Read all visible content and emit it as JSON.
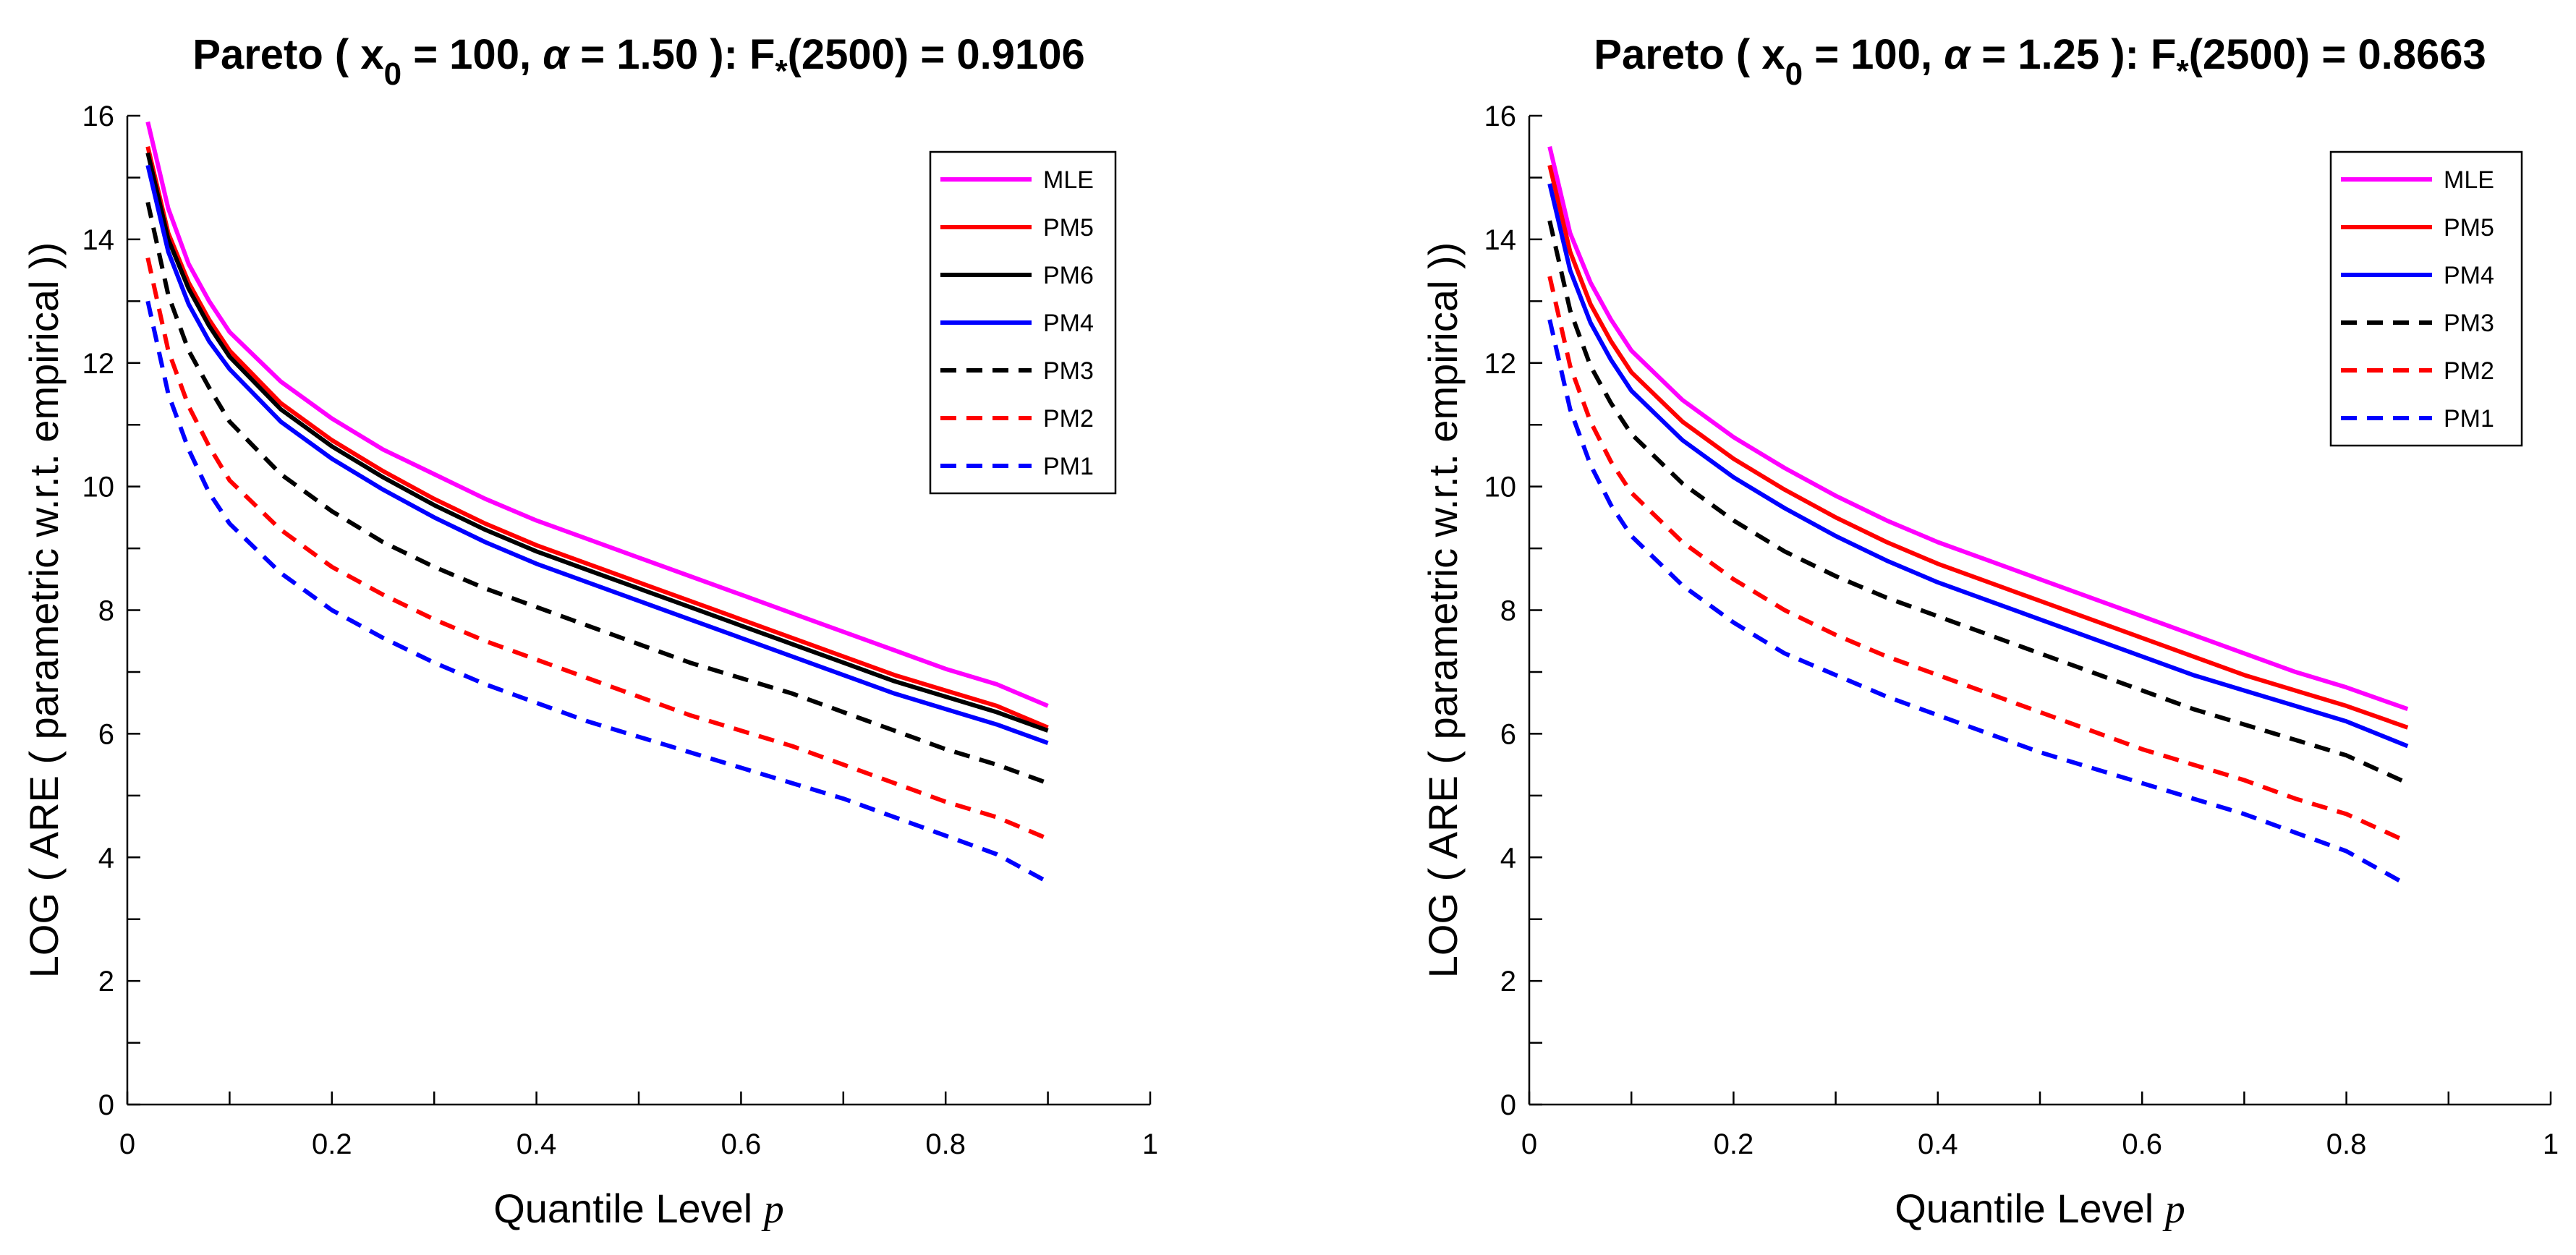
{
  "chart_data": [
    {
      "type": "line",
      "title": {
        "prefix": "Pareto ( x",
        "sub": "0",
        "mid1": " = 100, ",
        "alpha": "α",
        "mid2": " = 1.50 ):  F",
        "star": "*",
        "suffix": "(2500) = 0.9106"
      },
      "xlabel": "Quantile Level",
      "xlabel_var": "p",
      "ylabel": "LOG ( ARE ( parametric w.r.t. empirical ))",
      "xlim": [
        0,
        1
      ],
      "ylim": [
        0,
        16
      ],
      "xticks": [
        0,
        0.1,
        0.2,
        0.3,
        0.4,
        0.5,
        0.6,
        0.7,
        0.8,
        0.9,
        1
      ],
      "xtick_labels": [
        "0",
        "",
        "0.2",
        "",
        "0.4",
        "",
        "0.6",
        "",
        "0.8",
        "",
        "1"
      ],
      "yticks": [
        0,
        1,
        2,
        3,
        4,
        5,
        6,
        7,
        8,
        9,
        10,
        11,
        12,
        13,
        14,
        15,
        16
      ],
      "ytick_labels": [
        "0",
        "",
        "2",
        "",
        "4",
        "",
        "6",
        "",
        "8",
        "",
        "10",
        "",
        "12",
        "",
        "14",
        "",
        "16"
      ],
      "grid": false,
      "legend_position": "top-right",
      "series": [
        {
          "name": "MLE",
          "color": "#ff00ff",
          "dash": false,
          "x": [
            0.02,
            0.04,
            0.06,
            0.08,
            0.1,
            0.15,
            0.2,
            0.25,
            0.3,
            0.35,
            0.4,
            0.45,
            0.5,
            0.55,
            0.6,
            0.65,
            0.7,
            0.75,
            0.8,
            0.85,
            0.9
          ],
          "y": [
            15.9,
            14.5,
            13.6,
            13.0,
            12.5,
            11.7,
            11.1,
            10.6,
            10.2,
            9.8,
            9.45,
            9.15,
            8.85,
            8.55,
            8.25,
            7.95,
            7.65,
            7.35,
            7.05,
            6.8,
            6.45
          ]
        },
        {
          "name": "PM5",
          "color": "#ff0000",
          "dash": false,
          "x": [
            0.02,
            0.04,
            0.06,
            0.08,
            0.1,
            0.15,
            0.2,
            0.25,
            0.3,
            0.35,
            0.4,
            0.45,
            0.5,
            0.55,
            0.6,
            0.65,
            0.7,
            0.75,
            0.8,
            0.85,
            0.9
          ],
          "y": [
            15.5,
            14.1,
            13.3,
            12.7,
            12.2,
            11.35,
            10.75,
            10.25,
            9.8,
            9.4,
            9.05,
            8.75,
            8.45,
            8.15,
            7.85,
            7.55,
            7.25,
            6.95,
            6.7,
            6.45,
            6.1
          ]
        },
        {
          "name": "PM6",
          "color": "#000000",
          "dash": false,
          "x": [
            0.02,
            0.04,
            0.06,
            0.08,
            0.1,
            0.15,
            0.2,
            0.25,
            0.3,
            0.35,
            0.4,
            0.45,
            0.5,
            0.55,
            0.6,
            0.65,
            0.7,
            0.75,
            0.8,
            0.85,
            0.9
          ],
          "y": [
            15.4,
            14.0,
            13.2,
            12.6,
            12.1,
            11.25,
            10.65,
            10.15,
            9.7,
            9.3,
            8.95,
            8.65,
            8.35,
            8.05,
            7.75,
            7.45,
            7.15,
            6.85,
            6.6,
            6.35,
            6.05
          ]
        },
        {
          "name": "PM4",
          "color": "#0000ff",
          "dash": false,
          "x": [
            0.02,
            0.04,
            0.06,
            0.08,
            0.1,
            0.15,
            0.2,
            0.25,
            0.3,
            0.35,
            0.4,
            0.45,
            0.5,
            0.55,
            0.6,
            0.65,
            0.7,
            0.75,
            0.8,
            0.85,
            0.9
          ],
          "y": [
            15.2,
            13.8,
            12.95,
            12.35,
            11.9,
            11.05,
            10.45,
            9.95,
            9.5,
            9.1,
            8.75,
            8.45,
            8.15,
            7.85,
            7.55,
            7.25,
            6.95,
            6.65,
            6.4,
            6.15,
            5.85
          ]
        },
        {
          "name": "PM3",
          "color": "#000000",
          "dash": true,
          "x": [
            0.02,
            0.04,
            0.06,
            0.08,
            0.1,
            0.15,
            0.2,
            0.25,
            0.3,
            0.35,
            0.4,
            0.45,
            0.5,
            0.55,
            0.6,
            0.65,
            0.7,
            0.75,
            0.8,
            0.85,
            0.9
          ],
          "y": [
            14.6,
            13.1,
            12.2,
            11.6,
            11.05,
            10.2,
            9.6,
            9.1,
            8.7,
            8.35,
            8.05,
            7.75,
            7.45,
            7.15,
            6.9,
            6.65,
            6.35,
            6.05,
            5.75,
            5.5,
            5.2
          ]
        },
        {
          "name": "PM2",
          "color": "#ff0000",
          "dash": true,
          "x": [
            0.02,
            0.04,
            0.06,
            0.08,
            0.1,
            0.15,
            0.2,
            0.25,
            0.3,
            0.35,
            0.4,
            0.45,
            0.5,
            0.55,
            0.6,
            0.65,
            0.7,
            0.75,
            0.8,
            0.85,
            0.9
          ],
          "y": [
            13.7,
            12.2,
            11.3,
            10.65,
            10.1,
            9.3,
            8.7,
            8.25,
            7.85,
            7.5,
            7.2,
            6.9,
            6.6,
            6.3,
            6.05,
            5.8,
            5.5,
            5.2,
            4.9,
            4.65,
            4.3
          ]
        },
        {
          "name": "PM1",
          "color": "#0000ff",
          "dash": true,
          "x": [
            0.02,
            0.04,
            0.06,
            0.08,
            0.1,
            0.15,
            0.2,
            0.25,
            0.3,
            0.35,
            0.4,
            0.45,
            0.5,
            0.55,
            0.6,
            0.65,
            0.7,
            0.75,
            0.8,
            0.85,
            0.9
          ],
          "y": [
            13.0,
            11.5,
            10.6,
            9.9,
            9.4,
            8.6,
            8.0,
            7.55,
            7.15,
            6.8,
            6.5,
            6.2,
            5.95,
            5.7,
            5.45,
            5.2,
            4.95,
            4.65,
            4.35,
            4.05,
            3.6
          ]
        }
      ]
    },
    {
      "type": "line",
      "title": {
        "prefix": "Pareto ( x",
        "sub": "0",
        "mid1": " = 100, ",
        "alpha": "α",
        "mid2": " = 1.25 ):  F",
        "star": "*",
        "suffix": "(2500) = 0.8663"
      },
      "xlabel": "Quantile Level",
      "xlabel_var": "p",
      "ylabel": "LOG ( ARE ( parametric w.r.t. empirical ))",
      "xlim": [
        0,
        1
      ],
      "ylim": [
        0,
        16
      ],
      "xticks": [
        0,
        0.1,
        0.2,
        0.3,
        0.4,
        0.5,
        0.6,
        0.7,
        0.8,
        0.9,
        1
      ],
      "xtick_labels": [
        "0",
        "",
        "0.2",
        "",
        "0.4",
        "",
        "0.6",
        "",
        "0.8",
        "",
        "1"
      ],
      "yticks": [
        0,
        1,
        2,
        3,
        4,
        5,
        6,
        7,
        8,
        9,
        10,
        11,
        12,
        13,
        14,
        15,
        16
      ],
      "ytick_labels": [
        "0",
        "",
        "2",
        "",
        "4",
        "",
        "6",
        "",
        "8",
        "",
        "10",
        "",
        "12",
        "",
        "14",
        "",
        "16"
      ],
      "grid": false,
      "legend_position": "top-right",
      "series": [
        {
          "name": "MLE",
          "color": "#ff00ff",
          "dash": false,
          "x": [
            0.02,
            0.04,
            0.06,
            0.08,
            0.1,
            0.15,
            0.2,
            0.25,
            0.3,
            0.35,
            0.4,
            0.45,
            0.5,
            0.55,
            0.6,
            0.65,
            0.7,
            0.75,
            0.8,
            0.86
          ],
          "y": [
            15.5,
            14.1,
            13.3,
            12.7,
            12.2,
            11.4,
            10.8,
            10.3,
            9.85,
            9.45,
            9.1,
            8.8,
            8.5,
            8.2,
            7.9,
            7.6,
            7.3,
            7.0,
            6.75,
            6.4
          ]
        },
        {
          "name": "PM5",
          "color": "#ff0000",
          "dash": false,
          "x": [
            0.02,
            0.04,
            0.06,
            0.08,
            0.1,
            0.15,
            0.2,
            0.25,
            0.3,
            0.35,
            0.4,
            0.45,
            0.5,
            0.55,
            0.6,
            0.65,
            0.7,
            0.75,
            0.8,
            0.86
          ],
          "y": [
            15.2,
            13.8,
            12.95,
            12.35,
            11.85,
            11.05,
            10.45,
            9.95,
            9.5,
            9.1,
            8.75,
            8.45,
            8.15,
            7.85,
            7.55,
            7.25,
            6.95,
            6.7,
            6.45,
            6.1
          ]
        },
        {
          "name": "PM4",
          "color": "#0000ff",
          "dash": false,
          "x": [
            0.02,
            0.04,
            0.06,
            0.08,
            0.1,
            0.15,
            0.2,
            0.25,
            0.3,
            0.35,
            0.4,
            0.45,
            0.5,
            0.55,
            0.6,
            0.65,
            0.7,
            0.75,
            0.8,
            0.86
          ],
          "y": [
            14.9,
            13.5,
            12.65,
            12.05,
            11.55,
            10.75,
            10.15,
            9.65,
            9.2,
            8.8,
            8.45,
            8.15,
            7.85,
            7.55,
            7.25,
            6.95,
            6.7,
            6.45,
            6.2,
            5.8
          ]
        },
        {
          "name": "PM3",
          "color": "#000000",
          "dash": true,
          "x": [
            0.02,
            0.04,
            0.06,
            0.08,
            0.1,
            0.15,
            0.2,
            0.25,
            0.3,
            0.35,
            0.4,
            0.45,
            0.5,
            0.55,
            0.6,
            0.65,
            0.7,
            0.75,
            0.8,
            0.86
          ],
          "y": [
            14.3,
            12.85,
            11.95,
            11.35,
            10.85,
            10.05,
            9.45,
            8.95,
            8.55,
            8.2,
            7.9,
            7.6,
            7.3,
            7.0,
            6.7,
            6.4,
            6.15,
            5.9,
            5.65,
            5.2
          ]
        },
        {
          "name": "PM2",
          "color": "#ff0000",
          "dash": true,
          "x": [
            0.02,
            0.04,
            0.06,
            0.08,
            0.1,
            0.15,
            0.2,
            0.25,
            0.3,
            0.35,
            0.4,
            0.45,
            0.5,
            0.55,
            0.6,
            0.65,
            0.7,
            0.75,
            0.8,
            0.86
          ],
          "y": [
            13.4,
            11.95,
            11.05,
            10.4,
            9.9,
            9.1,
            8.5,
            8.0,
            7.6,
            7.25,
            6.95,
            6.65,
            6.35,
            6.05,
            5.75,
            5.5,
            5.25,
            4.95,
            4.7,
            4.25
          ]
        },
        {
          "name": "PM1",
          "color": "#0000ff",
          "dash": true,
          "x": [
            0.02,
            0.04,
            0.06,
            0.08,
            0.1,
            0.15,
            0.2,
            0.25,
            0.3,
            0.35,
            0.4,
            0.45,
            0.5,
            0.55,
            0.6,
            0.65,
            0.7,
            0.75,
            0.8,
            0.86
          ],
          "y": [
            12.7,
            11.25,
            10.35,
            9.7,
            9.2,
            8.4,
            7.8,
            7.3,
            6.95,
            6.6,
            6.3,
            6.0,
            5.7,
            5.45,
            5.2,
            4.95,
            4.7,
            4.4,
            4.1,
            3.55
          ]
        }
      ]
    }
  ]
}
